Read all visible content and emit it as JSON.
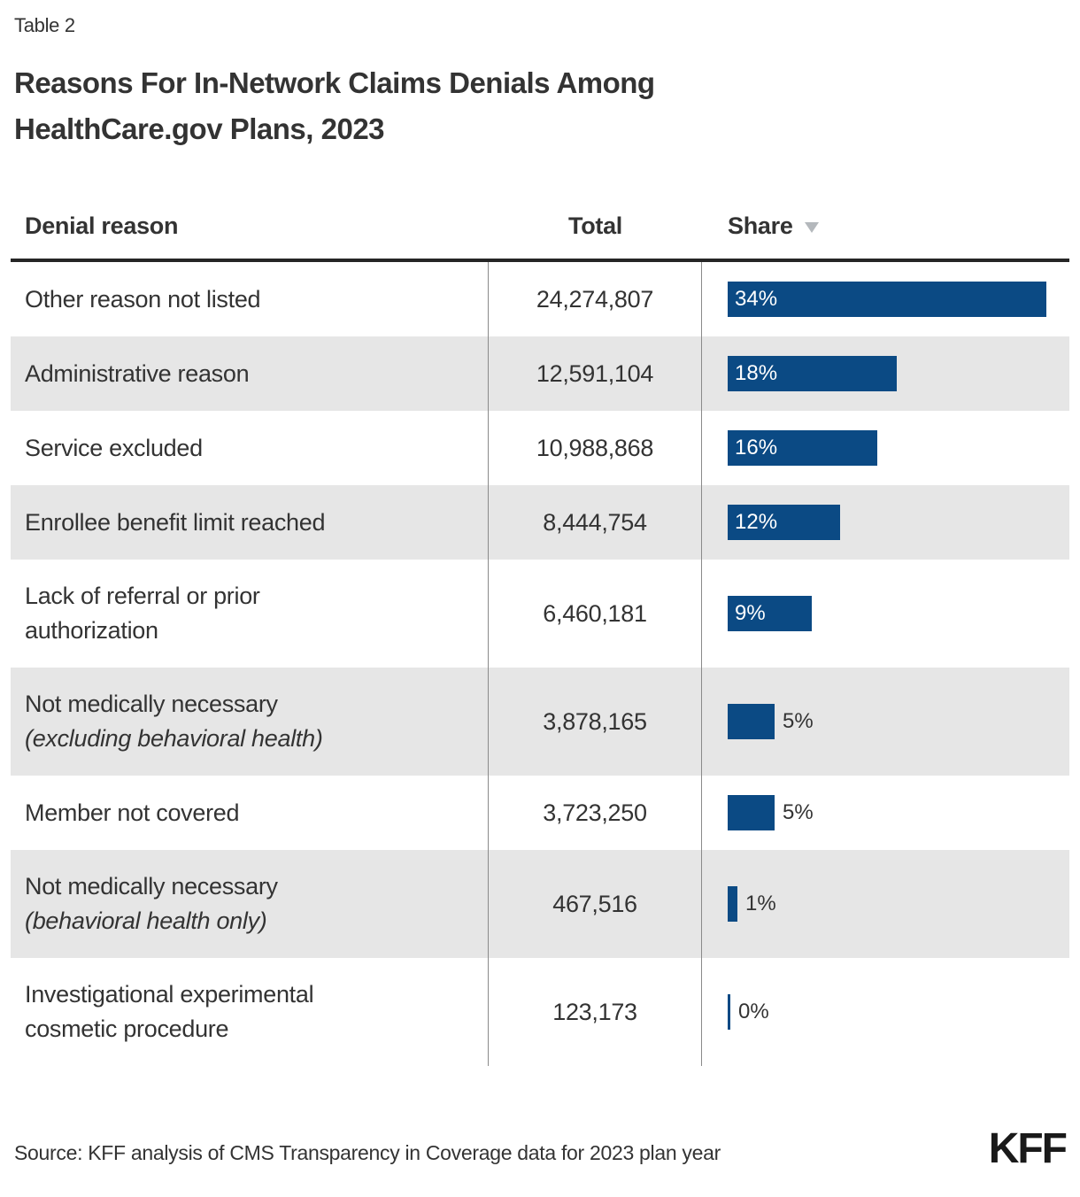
{
  "page": {
    "eyebrow": "Table 2",
    "title_line1": "Reasons For In-Network Claims Denials Among",
    "title_line2": "HealthCare.gov Plans, 2023",
    "source": "Source: KFF analysis of CMS Transparency in Coverage data for 2023 plan year",
    "logo": "KFF"
  },
  "colors": {
    "bar": "#0b4a84",
    "row_alt": "#e6e6e6",
    "text": "#333333",
    "grid_line": "#8a8a8a",
    "header_rule": "#262626",
    "sort_triangle": "#b4b8bc",
    "bar_label_inside": "#ffffff",
    "logo": "#1a1a1a"
  },
  "chart_data": {
    "type": "table",
    "title": "Reasons For In-Network Claims Denials Among HealthCare.gov Plans, 2023",
    "columns": [
      "Denial reason",
      "Total",
      "Share"
    ],
    "sort": {
      "column": "Share",
      "direction": "desc"
    },
    "share_axis_max_pct": 34,
    "rows": [
      {
        "reason": "Other reason not listed",
        "reason_lines": [
          {
            "text": "Other reason not listed",
            "italic": false
          }
        ],
        "total": 24274807,
        "total_display": "24,274,807",
        "share_pct": 34,
        "share_display": "34%",
        "share_label_inside_bar": true
      },
      {
        "reason": "Administrative reason",
        "reason_lines": [
          {
            "text": "Administrative reason",
            "italic": false
          }
        ],
        "total": 12591104,
        "total_display": "12,591,104",
        "share_pct": 18,
        "share_display": "18%",
        "share_label_inside_bar": true
      },
      {
        "reason": "Service excluded",
        "reason_lines": [
          {
            "text": "Service excluded",
            "italic": false
          }
        ],
        "total": 10988868,
        "total_display": "10,988,868",
        "share_pct": 16,
        "share_display": "16%",
        "share_label_inside_bar": true
      },
      {
        "reason": "Enrollee benefit limit reached",
        "reason_lines": [
          {
            "text": "Enrollee benefit limit reached",
            "italic": false
          }
        ],
        "total": 8444754,
        "total_display": "8,444,754",
        "share_pct": 12,
        "share_display": "12%",
        "share_label_inside_bar": true
      },
      {
        "reason": "Lack of referral or prior authorization",
        "reason_lines": [
          {
            "text": "Lack of referral or prior",
            "italic": false
          },
          {
            "text": "authorization",
            "italic": false
          }
        ],
        "total": 6460181,
        "total_display": "6,460,181",
        "share_pct": 9,
        "share_display": "9%",
        "share_label_inside_bar": true
      },
      {
        "reason": "Not medically necessary (excluding behavioral health)",
        "reason_lines": [
          {
            "text": "Not medically necessary",
            "italic": false
          },
          {
            "text": "(excluding behavioral health)",
            "italic": true
          }
        ],
        "total": 3878165,
        "total_display": "3,878,165",
        "share_pct": 5,
        "share_display": "5%",
        "share_label_inside_bar": false
      },
      {
        "reason": "Member not covered",
        "reason_lines": [
          {
            "text": "Member not covered",
            "italic": false
          }
        ],
        "total": 3723250,
        "total_display": "3,723,250",
        "share_pct": 5,
        "share_display": "5%",
        "share_label_inside_bar": false
      },
      {
        "reason": "Not medically necessary (behavioral health only)",
        "reason_lines": [
          {
            "text": "Not medically necessary",
            "italic": false
          },
          {
            "text": "(behavioral health only)",
            "italic": true
          }
        ],
        "total": 467516,
        "total_display": "467,516",
        "share_pct": 1,
        "share_display": "1%",
        "share_label_inside_bar": false
      },
      {
        "reason": "Investigational experimental cosmetic procedure",
        "reason_lines": [
          {
            "text": "Investigational experimental",
            "italic": false
          },
          {
            "text": "cosmetic procedure",
            "italic": false
          }
        ],
        "total": 123173,
        "total_display": "123,173",
        "share_pct": 0,
        "share_display": "0%",
        "share_label_inside_bar": false
      }
    ]
  }
}
